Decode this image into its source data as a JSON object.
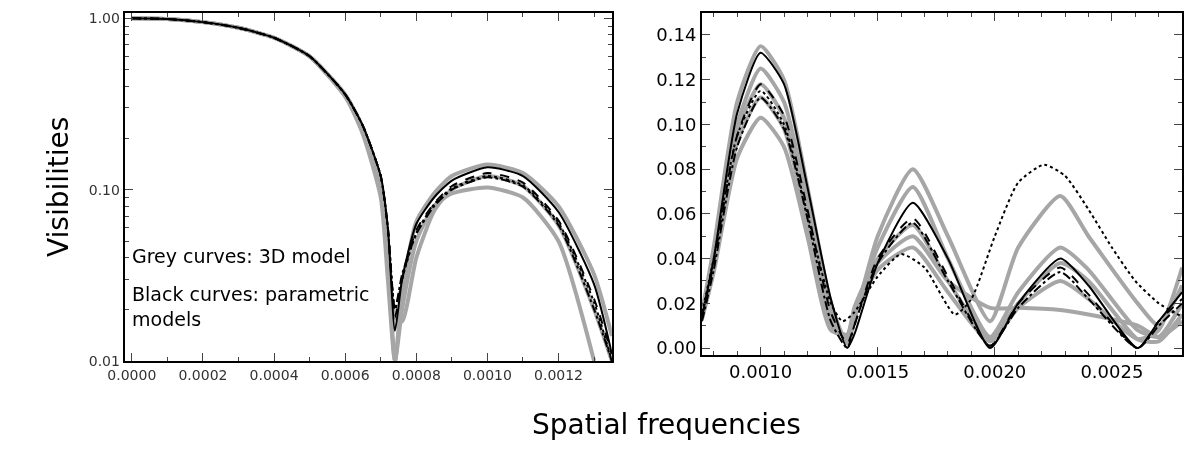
{
  "chart_data": [
    {
      "type": "line",
      "ylabel": "Visibilities",
      "log": "y",
      "xlim": [
        -2e-05,
        0.00135
      ],
      "ylim": [
        0.01,
        1.08
      ],
      "xticks": [
        {
          "value": 0.0,
          "label": "0.0000"
        },
        {
          "value": 0.0002,
          "label": "0.0002"
        },
        {
          "value": 0.0004,
          "label": "0.0004"
        },
        {
          "value": 0.0006,
          "label": "0.0006"
        },
        {
          "value": 0.0008,
          "label": "0.0008"
        },
        {
          "value": 0.001,
          "label": "0.0010"
        },
        {
          "value": 0.0012,
          "label": "0.0012"
        }
      ],
      "yticks": [
        {
          "value": 0.01,
          "label": "0.01"
        },
        {
          "value": 0.1,
          "label": "0.10"
        },
        {
          "value": 1,
          "label": "1.00"
        }
      ],
      "x": [
        0,
        0.0001,
        0.0002,
        0.0003,
        0.0004,
        0.0005,
        0.0006,
        0.00065,
        0.0007,
        0.00072,
        0.00074,
        0.00076,
        0.0008,
        0.00085,
        0.0009,
        0.001,
        0.0011,
        0.0012,
        0.0013,
        0.00135
      ],
      "annotations": [
        "Grey curves: 3D model",
        "Black curves: parametric models"
      ],
      "series": [
        {
          "color": "#a6a6a6",
          "line_style": "solid",
          "values": [
            1.0,
            0.99,
            0.95,
            0.88,
            0.77,
            0.6,
            0.35,
            0.22,
            0.1,
            0.04,
            0.01,
            0.025,
            0.065,
            0.095,
            0.12,
            0.14,
            0.125,
            0.08,
            0.032,
            0.014
          ]
        },
        {
          "color": "#a6a6a6",
          "line_style": "solid",
          "values": [
            1.0,
            0.99,
            0.95,
            0.88,
            0.77,
            0.6,
            0.35,
            0.21,
            0.09,
            0.03,
            0.01,
            0.02,
            0.05,
            0.08,
            0.095,
            0.103,
            0.09,
            0.05,
            0.01,
            null
          ]
        },
        {
          "color": "#a6a6a6",
          "line_style": "solid",
          "values": [
            1.0,
            0.99,
            0.95,
            0.88,
            0.77,
            0.6,
            0.36,
            0.23,
            0.11,
            0.05,
            0.018,
            0.017,
            0.04,
            0.075,
            0.1,
            0.12,
            0.105,
            0.062,
            0.02,
            0.01
          ]
        },
        {
          "color": "#000000",
          "line_style": "solid",
          "values": [
            1.0,
            0.99,
            0.95,
            0.88,
            0.77,
            0.6,
            0.36,
            0.235,
            0.12,
            0.06,
            0.015,
            0.03,
            0.063,
            0.09,
            0.113,
            0.135,
            0.12,
            0.074,
            0.028,
            0.011
          ]
        },
        {
          "color": "#000000",
          "line_style": "dashed",
          "values": [
            1.0,
            0.99,
            0.95,
            0.88,
            0.77,
            0.6,
            0.36,
            0.235,
            0.12,
            0.06,
            0.018,
            0.03,
            0.058,
            0.083,
            0.105,
            0.125,
            0.11,
            0.066,
            0.023,
            0.011
          ]
        },
        {
          "color": "#000000",
          "line_style": "dashdot",
          "values": [
            1.0,
            0.99,
            0.95,
            0.88,
            0.77,
            0.6,
            0.36,
            0.235,
            0.12,
            0.06,
            0.02,
            0.032,
            0.055,
            0.08,
            0.1,
            0.118,
            0.104,
            0.062,
            0.02,
            0.01
          ]
        },
        {
          "color": "#000000",
          "line_style": "dotted",
          "values": [
            1.0,
            0.99,
            0.95,
            0.88,
            0.77,
            0.6,
            0.36,
            0.235,
            0.12,
            0.06,
            0.02,
            0.03,
            0.056,
            0.082,
            0.102,
            0.12,
            0.106,
            0.064,
            0.022,
            0.01
          ]
        }
      ]
    },
    {
      "type": "line",
      "xlabel": "Spatial frequencies",
      "xlim": [
        0.00075,
        0.0028
      ],
      "ylim": [
        -0.003,
        0.15
      ],
      "xticks": [
        {
          "value": 0.001,
          "label": "0.0010"
        },
        {
          "value": 0.0015,
          "label": "0.0015"
        },
        {
          "value": 0.002,
          "label": "0.0020"
        },
        {
          "value": 0.0025,
          "label": "0.0025"
        }
      ],
      "yticks": [
        {
          "value": 0,
          "label": "0.00"
        },
        {
          "value": 0.02,
          "label": "0.02"
        },
        {
          "value": 0.04,
          "label": "0.04"
        },
        {
          "value": 0.06,
          "label": "0.06"
        },
        {
          "value": 0.08,
          "label": "0.08"
        },
        {
          "value": 0.1,
          "label": "0.10"
        },
        {
          "value": 0.12,
          "label": "0.12"
        },
        {
          "value": 0.14,
          "label": "0.14"
        }
      ],
      "x": [
        0.00075,
        0.0008,
        0.0009,
        0.001,
        0.0011,
        0.0012,
        0.0013,
        0.00137,
        0.0014,
        0.0015,
        0.00165,
        0.0018,
        0.00198,
        0.0021,
        0.00228,
        0.0024,
        0.00261,
        0.0027,
        0.0028
      ],
      "series": [
        {
          "color": "#a6a6a6",
          "line_style": "solid",
          "values": [
            0.016,
            0.045,
            0.11,
            0.135,
            0.12,
            0.072,
            0.02,
            0.002,
            0.012,
            0.05,
            0.08,
            0.05,
            0.012,
            0.045,
            0.068,
            0.05,
            0.02,
            0.01,
            0.028
          ]
        },
        {
          "color": "#a6a6a6",
          "line_style": "solid",
          "values": [
            0.015,
            0.042,
            0.1,
            0.125,
            0.11,
            0.065,
            0.015,
            0.004,
            0.015,
            0.045,
            0.072,
            0.04,
            0.005,
            0.025,
            0.045,
            0.035,
            0.008,
            0.005,
            0.02
          ]
        },
        {
          "color": "#a6a6a6",
          "line_style": "solid",
          "values": [
            0.014,
            0.038,
            0.092,
            0.112,
            0.098,
            0.056,
            0.01,
            0.006,
            0.018,
            0.04,
            0.055,
            0.03,
            0.004,
            0.02,
            0.038,
            0.03,
            0.004,
            0.003,
            0.015
          ]
        },
        {
          "color": "#a6a6a6",
          "line_style": "solid",
          "values": [
            0.013,
            0.034,
            0.085,
            0.103,
            0.09,
            0.05,
            0.008,
            0.006,
            0.015,
            0.035,
            0.045,
            0.025,
            0.003,
            0.018,
            0.03,
            0.022,
            0.004,
            0.008,
            0.036
          ]
        },
        {
          "color": "#a6a6a6",
          "line_style": "solid",
          "values": [
            0.015,
            0.04,
            0.097,
            0.118,
            0.103,
            0.06,
            0.012,
            0.005,
            0.016,
            0.038,
            0.05,
            0.03,
            0.018,
            0.018,
            0.017,
            0.015,
            0.01,
            0.005,
            0.012
          ]
        },
        {
          "color": "#000000",
          "line_style": "solid",
          "values": [
            0.014,
            0.04,
            0.105,
            0.132,
            0.118,
            0.072,
            0.022,
            0.0,
            0.006,
            0.038,
            0.065,
            0.04,
            0.0,
            0.02,
            0.04,
            0.028,
            0.0,
            0.012,
            0.025
          ]
        },
        {
          "color": "#000000",
          "line_style": "dashed",
          "values": [
            0.014,
            0.038,
            0.095,
            0.118,
            0.104,
            0.062,
            0.016,
            0.002,
            0.01,
            0.04,
            0.058,
            0.032,
            0.001,
            0.02,
            0.036,
            0.024,
            0.0,
            0.012,
            0.022
          ]
        },
        {
          "color": "#000000",
          "line_style": "dashdot",
          "values": [
            0.012,
            0.035,
            0.09,
            0.112,
            0.098,
            0.058,
            0.012,
            0.0,
            0.01,
            0.038,
            0.056,
            0.03,
            0.001,
            0.018,
            0.034,
            0.022,
            0.0,
            0.01,
            0.02
          ]
        },
        {
          "color": "#000000",
          "line_style": "dotted",
          "x": [
            0.00075,
            0.0008,
            0.0009,
            0.001,
            0.0011,
            0.0012,
            0.0013,
            0.00135,
            0.0014,
            0.0015,
            0.0016,
            0.0017,
            0.00183,
            0.0019,
            0.002,
            0.0021,
            0.00221,
            0.0023,
            0.0024,
            0.0025,
            0.0026,
            0.0027,
            0.0028
          ],
          "values": [
            0.016,
            0.04,
            0.095,
            0.115,
            0.1,
            0.06,
            0.02,
            0.012,
            0.016,
            0.032,
            0.042,
            0.036,
            0.015,
            0.022,
            0.05,
            0.074,
            0.082,
            0.077,
            0.062,
            0.045,
            0.03,
            0.02,
            0.014
          ]
        }
      ]
    }
  ]
}
